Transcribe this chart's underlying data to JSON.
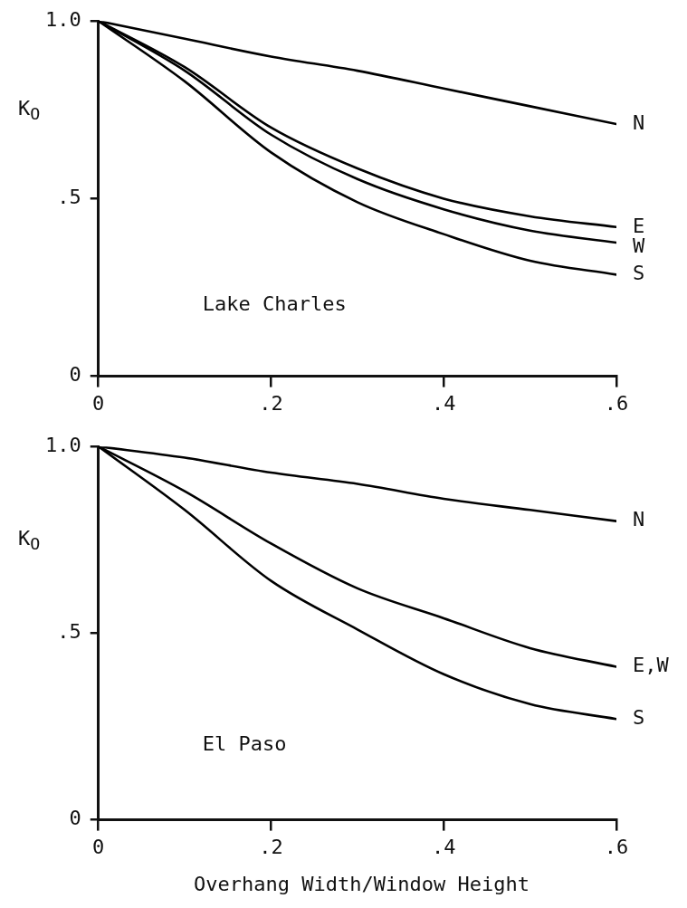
{
  "chart_data": [
    {
      "type": "line",
      "ylabel": "K$_{O}$",
      "annotations": [
        "Lake Charles"
      ],
      "x": [
        0,
        0.1,
        0.2,
        0.3,
        0.4,
        0.5,
        0.6
      ],
      "xlim": [
        0,
        0.6
      ],
      "ylim": [
        0,
        1
      ],
      "xticks": [
        {
          "value": 0,
          "label": "0"
        },
        {
          "value": 0.2,
          "label": ".2"
        },
        {
          "value": 0.4,
          "label": ".4"
        },
        {
          "value": 0.6,
          "label": ".6"
        }
      ],
      "yticks": [
        {
          "value": 0,
          "label": "0"
        },
        {
          "value": 0.5,
          "label": ".5"
        },
        {
          "value": 1,
          "label": "1.0"
        }
      ],
      "grid": false,
      "legend": false,
      "marker": "none",
      "line_style": "solid",
      "series": [
        {
          "name": "N",
          "color": "#000000",
          "values": [
            1,
            0.95,
            0.9,
            0.86,
            0.81,
            0.76,
            0.71
          ]
        },
        {
          "name": "E",
          "color": "#000000",
          "values": [
            1,
            0.87,
            0.7,
            0.585,
            0.5,
            0.45,
            0.42
          ]
        },
        {
          "name": "W",
          "color": "#000000",
          "values": [
            1,
            0.86,
            0.68,
            0.555,
            0.47,
            0.41,
            0.376
          ]
        },
        {
          "name": "S",
          "color": "#000000",
          "values": [
            1,
            0.83,
            0.63,
            0.49,
            0.4,
            0.325,
            0.286
          ]
        }
      ]
    },
    {
      "type": "line",
      "ylabel": "K$_{O}$",
      "xlabel": "Overhang Width/Window Height",
      "annotations": [
        "El Paso"
      ],
      "x": [
        0,
        0.1,
        0.2,
        0.3,
        0.4,
        0.5,
        0.6
      ],
      "xlim": [
        0,
        0.6
      ],
      "ylim": [
        0,
        1
      ],
      "xticks": [
        {
          "value": 0,
          "label": "0"
        },
        {
          "value": 0.2,
          "label": ".2"
        },
        {
          "value": 0.4,
          "label": ".4"
        },
        {
          "value": 0.6,
          "label": ".6"
        }
      ],
      "yticks": [
        {
          "value": 0,
          "label": "0"
        },
        {
          "value": 0.5,
          "label": ".5"
        },
        {
          "value": 1,
          "label": "1.0"
        }
      ],
      "grid": false,
      "legend": false,
      "marker": "none",
      "line_style": "solid",
      "series": [
        {
          "name": "N",
          "color": "#000000",
          "values": [
            1,
            0.97,
            0.93,
            0.9,
            0.86,
            0.83,
            0.8
          ]
        },
        {
          "name": "E,W",
          "color": "#000000",
          "values": [
            1,
            0.88,
            0.74,
            0.62,
            0.54,
            0.46,
            0.41
          ]
        },
        {
          "name": "S",
          "color": "#000000",
          "values": [
            1,
            0.83,
            0.64,
            0.51,
            0.39,
            0.31,
            0.27
          ]
        }
      ]
    }
  ]
}
